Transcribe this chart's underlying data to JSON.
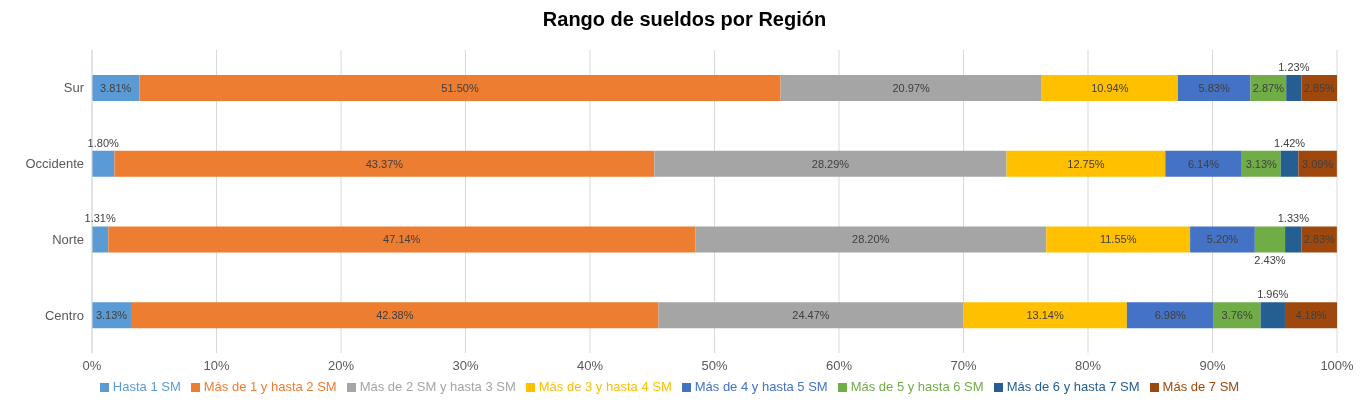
{
  "chart_data": {
    "type": "bar",
    "orientation": "horizontal",
    "stacked": true,
    "title": "Rango de sueldos por Región",
    "categories": [
      "Sur",
      "Occidente",
      "Norte",
      "Centro"
    ],
    "series": [
      {
        "name": "Hasta 1 SM",
        "color": "#5b9bd5",
        "values": [
          3.81,
          1.8,
          1.31,
          3.13
        ],
        "value_labels": [
          "3.81%",
          "1.80%",
          "1.31%",
          "3.13%"
        ]
      },
      {
        "name": "Más de 1 y hasta 2 SM",
        "color": "#ed7d31",
        "values": [
          51.5,
          43.37,
          47.14,
          42.38
        ],
        "value_labels": [
          "51.50%",
          "43.37%",
          "47.14%",
          "42.38%"
        ]
      },
      {
        "name": "Más de 2 SM y hasta 3 SM",
        "color": "#a5a5a5",
        "values": [
          20.97,
          28.29,
          28.2,
          24.47
        ],
        "value_labels": [
          "20.97%",
          "28.29%",
          "28.20%",
          "24.47%"
        ]
      },
      {
        "name": "Más de 3 y hasta 4 SM",
        "color": "#ffc000",
        "values": [
          10.94,
          12.75,
          11.55,
          13.14
        ],
        "value_labels": [
          "10.94%",
          "12.75%",
          "11.55%",
          "13.14%"
        ]
      },
      {
        "name": "Más de 4 y hasta 5 SM",
        "color": "#4472c4",
        "values": [
          5.83,
          6.14,
          5.2,
          6.98
        ],
        "value_labels": [
          "5.83%",
          "6.14%",
          "5.20%",
          "6.98%"
        ]
      },
      {
        "name": "Más de 5 y hasta 6 SM",
        "color": "#70ad47",
        "values": [
          2.87,
          3.13,
          2.43,
          3.76
        ],
        "value_labels": [
          "2.87%",
          "3.13%",
          "2.43%",
          "3.76%"
        ]
      },
      {
        "name": "Más de 6 y hasta 7 SM",
        "color": "#255e91",
        "values": [
          1.23,
          1.42,
          1.33,
          1.96
        ],
        "value_labels": [
          "1.23%",
          "1.42%",
          "1.33%",
          "1.96%"
        ]
      },
      {
        "name": "Más de 7 SM",
        "color": "#9e480e",
        "values": [
          2.85,
          3.09,
          2.83,
          4.18
        ],
        "value_labels": [
          "2.85%",
          "3.09%",
          "2.83%",
          "4.18%"
        ]
      }
    ],
    "xlim": [
      0,
      100
    ],
    "xticks": [
      {
        "value": 0,
        "label": "0%"
      },
      {
        "value": 10,
        "label": "10%"
      },
      {
        "value": 20,
        "label": "20%"
      },
      {
        "value": 30,
        "label": "30%"
      },
      {
        "value": 40,
        "label": "40%"
      },
      {
        "value": 50,
        "label": "50%"
      },
      {
        "value": 60,
        "label": "60%"
      },
      {
        "value": 70,
        "label": "70%"
      },
      {
        "value": 80,
        "label": "80%"
      },
      {
        "value": 90,
        "label": "90%"
      },
      {
        "value": 100,
        "label": "100%"
      }
    ],
    "grid": "x",
    "legend": "bottom"
  }
}
